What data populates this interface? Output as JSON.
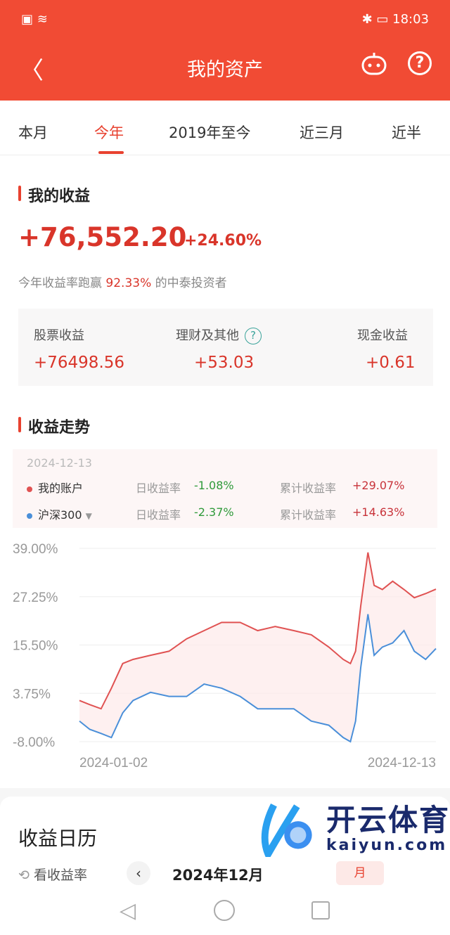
{
  "status": {
    "time": "18:03",
    "icons": [
      "sim-alert-icon",
      "wifi-icon",
      "bluetooth-icon",
      "battery-icon"
    ]
  },
  "header": {
    "title": "我的资产",
    "back_icon": "chevron-left-icon",
    "robot_icon": "robot-icon",
    "help_label": "?"
  },
  "tabs": [
    {
      "label": "本月"
    },
    {
      "label": "今年",
      "active": true
    },
    {
      "label": "2019年至今"
    },
    {
      "label": "近三月"
    },
    {
      "label": "近半"
    }
  ],
  "earnings": {
    "title": "我的收益",
    "total": "+76,552.20",
    "percent": "+24.60%",
    "beat_prefix": "今年收益率跑赢",
    "beat_value": "92.33%",
    "beat_suffix": "的中泰投资者",
    "split": [
      {
        "label": "股票收益",
        "value": "+76498.56"
      },
      {
        "label": "理财及其他",
        "value": "+53.03",
        "help": "?"
      },
      {
        "label": "现金收益",
        "value": "+0.61"
      }
    ]
  },
  "trend": {
    "title": "收益走势",
    "date": "2024-12-13",
    "rows": [
      {
        "name": "我的账户",
        "daily_label": "日收益率",
        "daily": "-1.08%",
        "cum_label": "累计收益率",
        "cum": "+29.07%",
        "color": "#e05252"
      },
      {
        "name": "沪深300",
        "daily_label": "日收益率",
        "daily": "-2.37%",
        "cum_label": "累计收益率",
        "cum": "+14.63%",
        "color": "#4a8fd9"
      }
    ]
  },
  "chart_data": {
    "type": "line",
    "ylim": [
      -8,
      39
    ],
    "yticks": [
      "39.00%",
      "27.25%",
      "15.50%",
      "3.75%",
      "-8.00%"
    ],
    "ytick_values": [
      39,
      27.25,
      15.5,
      3.75,
      -8
    ],
    "xlim": [
      "2024-01-02",
      "2024-12-13"
    ],
    "xticks": [
      "2024-01-02",
      "2024-12-13"
    ],
    "grid": true,
    "x": [
      "2024-01-02",
      "2024-01-12",
      "2024-01-23",
      "2024-02-02",
      "2024-02-13",
      "2024-02-23",
      "2024-03-11",
      "2024-03-29",
      "2024-04-15",
      "2024-05-02",
      "2024-05-19",
      "2024-06-06",
      "2024-06-23",
      "2024-07-10",
      "2024-07-28",
      "2024-08-14",
      "2024-08-31",
      "2024-09-14",
      "2024-09-21",
      "2024-09-26",
      "2024-10-01",
      "2024-10-08",
      "2024-10-14",
      "2024-10-22",
      "2024-11-01",
      "2024-11-12",
      "2024-11-22",
      "2024-12-03",
      "2024-12-13"
    ],
    "series": [
      {
        "name": "我的账户",
        "color": "#e05252",
        "values": [
          2,
          1,
          0,
          5,
          11,
          12,
          13,
          14,
          17,
          19,
          21,
          21,
          19,
          20,
          19,
          18,
          15,
          12,
          11,
          14,
          25,
          38,
          30,
          29,
          31,
          29,
          27,
          28,
          29.07
        ]
      },
      {
        "name": "沪深300",
        "color": "#4a8fd9",
        "values": [
          -3,
          -5,
          -6,
          -7,
          -1,
          2,
          4,
          3,
          3,
          6,
          5,
          3,
          0,
          0,
          0,
          -3,
          -4,
          -7,
          -8,
          -3,
          10,
          23,
          13,
          15,
          16,
          19,
          14,
          12,
          14.63
        ]
      }
    ]
  },
  "calendar": {
    "title": "收益日历",
    "toggle": "看收益率",
    "month": "2024年12月",
    "prev_icon": "chevron-left-icon",
    "mode": "月"
  },
  "watermark": {
    "text": "开云体育",
    "url_text": "kaiyun.com"
  }
}
